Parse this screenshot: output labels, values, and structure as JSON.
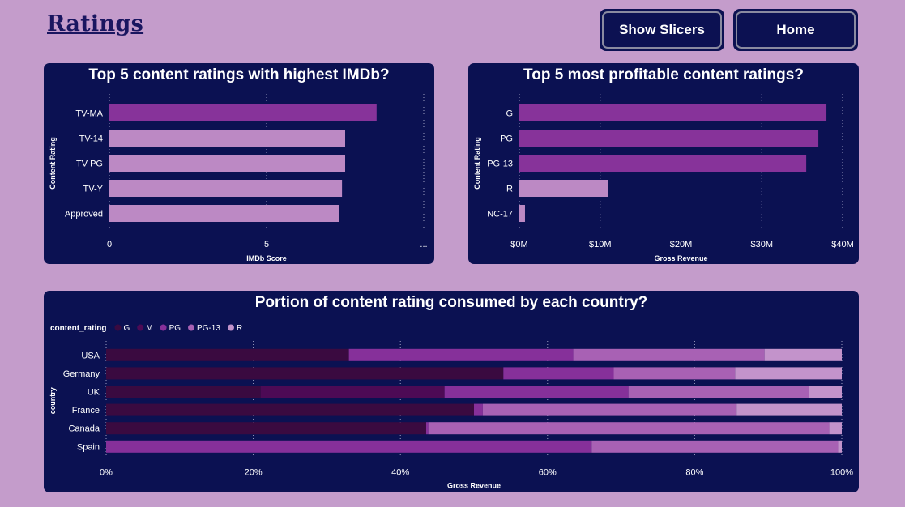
{
  "page": {
    "title": "Ratings",
    "buttons": {
      "show_slicers": "Show Slicers",
      "home": "Home"
    }
  },
  "colors": {
    "background": "#c49ccb",
    "panel": "#0b1152",
    "bar_dark": "#87339a",
    "bar_light": "#bc89c4",
    "G": "#3a0a40",
    "M": "#4d0a55",
    "PG": "#86309a",
    "PG-13": "#a861b4",
    "R": "#c393cb"
  },
  "chart_data": [
    {
      "type": "bar",
      "orientation": "horizontal",
      "title": "Top 5 content ratings with highest IMDb?",
      "xlabel": "IMDb Score",
      "ylabel": "Content Rating",
      "categories": [
        "TV-MA",
        "TV-14",
        "TV-PG",
        "TV-Y",
        "Approved"
      ],
      "values": [
        8.5,
        7.5,
        7.5,
        7.4,
        7.3
      ],
      "xlim": [
        0,
        10
      ],
      "xticks": [
        "0",
        "5",
        "..."
      ],
      "grid": true
    },
    {
      "type": "bar",
      "orientation": "horizontal",
      "title": "Top 5 most profitable content ratings?",
      "xlabel": "Gross Revenue",
      "ylabel": "Content Rating",
      "categories": [
        "G",
        "PG",
        "PG-13",
        "R",
        "NC-17"
      ],
      "values": [
        38,
        37,
        35.5,
        11,
        0.7
      ],
      "unit": "$M",
      "xlim": [
        0,
        40
      ],
      "xticks": [
        "$0M",
        "$10M",
        "$20M",
        "$30M",
        "$40M"
      ],
      "grid": true
    },
    {
      "type": "bar",
      "orientation": "horizontal",
      "stacked": "100%",
      "title": "Portion of content rating consumed by each country?",
      "xlabel": "Gross Revenue",
      "ylabel": "country",
      "legend_title": "content_rating",
      "legend_position": "top-left",
      "categories": [
        "USA",
        "Germany",
        "UK",
        "France",
        "Canada",
        "Spain"
      ],
      "series": [
        {
          "name": "G",
          "values": [
            33,
            54,
            21,
            50,
            43.5,
            0
          ]
        },
        {
          "name": "M",
          "values": [
            0,
            0,
            25,
            0,
            0,
            0
          ]
        },
        {
          "name": "PG",
          "values": [
            30.5,
            15,
            25,
            1.2,
            0.3,
            66
          ]
        },
        {
          "name": "PG-13",
          "values": [
            26,
            16.5,
            24.5,
            34.5,
            54.5,
            33.5
          ]
        },
        {
          "name": "R",
          "values": [
            10.5,
            14.5,
            4.5,
            14.3,
            1.7,
            0.5
          ]
        }
      ],
      "xlim": [
        0,
        100
      ],
      "xticks": [
        "0%",
        "20%",
        "40%",
        "60%",
        "80%",
        "100%"
      ],
      "grid": true
    }
  ]
}
